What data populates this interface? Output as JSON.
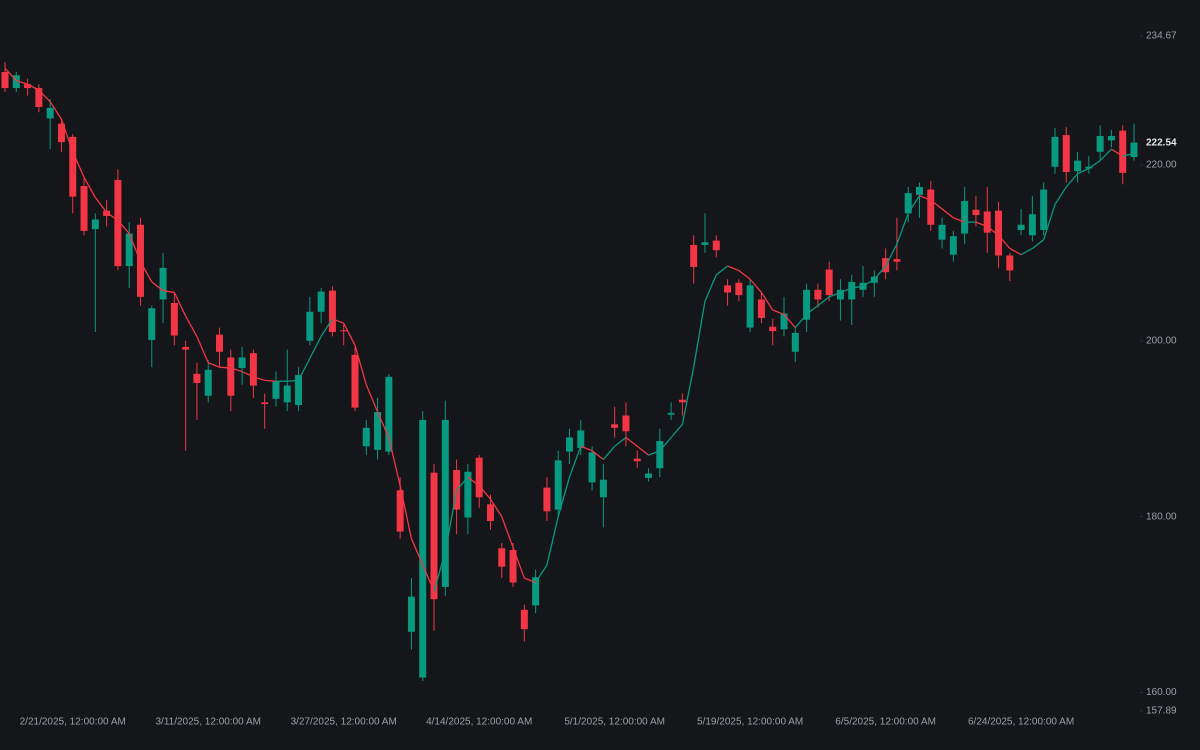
{
  "chart_data": {
    "type": "candlestick",
    "categories": [
      null,
      null,
      null,
      null,
      null,
      null,
      "2/21/2025, 12:00:00 AM",
      null,
      null,
      null,
      null,
      null,
      null,
      null,
      null,
      null,
      null,
      null,
      "3/11/2025, 12:00:00 AM",
      null,
      null,
      null,
      null,
      null,
      null,
      null,
      null,
      null,
      null,
      null,
      "3/27/2025, 12:00:00 AM",
      null,
      null,
      null,
      null,
      null,
      null,
      null,
      null,
      null,
      null,
      null,
      "4/14/2025, 12:00:00 AM",
      null,
      null,
      null,
      null,
      null,
      null,
      null,
      null,
      null,
      null,
      null,
      "5/1/2025, 12:00:00 AM",
      null,
      null,
      null,
      null,
      null,
      null,
      null,
      null,
      null,
      null,
      null,
      "5/19/2025, 12:00:00 AM",
      null,
      null,
      null,
      null,
      null,
      null,
      null,
      null,
      null,
      null,
      null,
      "6/5/2025, 12:00:00 AM",
      null,
      null,
      null,
      null,
      null,
      null,
      null,
      null,
      null,
      null,
      null,
      "6/24/2025, 12:00:00 AM",
      null,
      null,
      null,
      null,
      null,
      null,
      null,
      null,
      null,
      null
    ],
    "open": [
      230.57,
      228.75,
      229.2,
      228.75,
      225.3,
      224.7,
      223.2,
      217.6,
      212.7,
      214.8,
      218.3,
      208.5,
      213.2,
      200.1,
      204.7,
      204.3,
      199.3,
      196.25,
      193.75,
      200.7,
      198.1,
      196.9,
      198.6,
      193,
      193.4,
      193,
      192.7,
      200,
      203.3,
      205.7,
      201.2,
      198.4,
      188,
      187.6,
      187.4,
      183,
      166.9,
      161.7,
      185,
      172,
      185.3,
      179.9,
      186.7,
      181.4,
      176.4,
      176.2,
      169.4,
      169.9,
      183.3,
      180.8,
      187.4,
      187.8,
      183.9,
      182.2,
      190.5,
      191.5,
      186.6,
      184.4,
      185.5,
      191.6,
      193.3,
      210.9,
      210.9,
      211.4,
      206.3,
      206.6,
      201.5,
      204.7,
      201.6,
      201.3,
      198.75,
      202.4,
      205.8,
      208.1,
      204.7,
      204.7,
      205.8,
      206.6,
      209.4,
      209.3,
      214.5,
      216.6,
      217.2,
      211.5,
      209.8,
      212.2,
      214.9,
      214.7,
      214.8,
      209.7,
      212.6,
      212,
      212.6,
      219.8,
      223.4,
      219.3,
      219.6,
      221.5,
      222.8,
      223.9,
      220.9
    ],
    "high": [
      231.7,
      230.6,
      229.8,
      229.2,
      227.5,
      225.3,
      223.5,
      218.5,
      214.5,
      216,
      219.5,
      213.5,
      214,
      204,
      210,
      205.5,
      200,
      197.5,
      197.8,
      201.5,
      199,
      199.3,
      199,
      194,
      196.5,
      199,
      197,
      205,
      206,
      206.2,
      202,
      199.3,
      191,
      193.5,
      196.2,
      184.5,
      173,
      192,
      186,
      193.2,
      186.5,
      186,
      187,
      182.5,
      177,
      177,
      170,
      174,
      184.5,
      187.5,
      190,
      191,
      188,
      186,
      192.5,
      193,
      187.5,
      185.5,
      190,
      193,
      194,
      212,
      214.5,
      212,
      207,
      207,
      207,
      205.5,
      202.5,
      205,
      201.5,
      206.5,
      206.5,
      209,
      207,
      207.5,
      208.5,
      208,
      210.5,
      214,
      217.5,
      218,
      218.2,
      214,
      212.5,
      217.5,
      216.5,
      217.5,
      215.8,
      210,
      215,
      216.5,
      218,
      224.2,
      224.3,
      221.5,
      221,
      224.5,
      224,
      224.5,
      224.7
    ],
    "low": [
      228.3,
      228.3,
      227.9,
      226,
      221.8,
      221.5,
      214.5,
      212,
      201,
      213,
      208,
      206,
      204,
      197,
      202,
      199.5,
      187.5,
      191,
      193,
      197,
      192,
      195,
      193.5,
      190,
      192.5,
      192,
      192,
      199.5,
      202,
      200.5,
      199.5,
      192,
      187,
      186.5,
      187,
      177.5,
      164.9,
      161.3,
      167,
      171,
      178,
      178,
      181,
      178.5,
      173,
      172,
      165.8,
      169,
      179.5,
      180,
      186,
      187,
      183,
      178.8,
      189,
      188,
      185.5,
      184,
      184.5,
      191,
      191.5,
      206.5,
      210,
      209.5,
      204,
      204.5,
      201,
      202,
      199.5,
      200.5,
      197.6,
      201,
      203.8,
      204.5,
      202.3,
      201.8,
      205,
      205,
      207,
      208,
      213.5,
      214,
      212.5,
      210.5,
      209,
      211,
      213,
      210,
      208.3,
      206.8,
      212,
      211.3,
      212,
      219,
      218,
      218,
      219,
      220.5,
      222,
      217.8,
      220.5
    ],
    "close": [
      228.75,
      230.2,
      228.75,
      226.6,
      226.5,
      222.6,
      216.4,
      212.5,
      213.8,
      214.2,
      208.5,
      212.2,
      205,
      203.7,
      208.3,
      200.6,
      199,
      195.2,
      196.7,
      198.75,
      193.75,
      198.1,
      194.9,
      192.8,
      195.4,
      194.9,
      196.1,
      203.3,
      205.6,
      201,
      201.1,
      192.4,
      190.1,
      191.9,
      195.9,
      178.3,
      170.9,
      191,
      170.6,
      191,
      180.8,
      185.1,
      182.2,
      179.5,
      174.3,
      172.5,
      167.2,
      173.1,
      180.6,
      186.4,
      189,
      189.8,
      187.3,
      184.2,
      190.1,
      189.7,
      186.3,
      184.9,
      188.6,
      191.8,
      193,
      208.4,
      211.2,
      210.3,
      205.5,
      205.2,
      206.3,
      202.6,
      201.1,
      203.1,
      200.9,
      205.8,
      204.7,
      205.2,
      205.8,
      206.7,
      206.6,
      207.3,
      207.8,
      209,
      216.8,
      217.5,
      213.2,
      213.2,
      211.9,
      215.9,
      214.3,
      212.3,
      209.7,
      208,
      213.2,
      214.4,
      217.2,
      223.2,
      219.2,
      220.5,
      219.8,
      223.3,
      223.3,
      219.1,
      222.54
    ],
    "close_label": "222.54",
    "ma": [
      231.0,
      229.6,
      229.2,
      228.5,
      227.2,
      225.2,
      221.5,
      218.6,
      216.3,
      214.6,
      213.7,
      212.2,
      209.0,
      206.7,
      205.7,
      205.5,
      202.8,
      200.5,
      197.5,
      197.0,
      196.9,
      196.5,
      195.9,
      195.5,
      195.4,
      195.4,
      195.5,
      198.0,
      200.5,
      202.5,
      202.0,
      199.5,
      195.0,
      191.9,
      189.0,
      183.5,
      177.5,
      174.5,
      171.5,
      176.0,
      183.0,
      184.5,
      183.5,
      182.0,
      180.0,
      176.5,
      173.0,
      172.5,
      174.5,
      180.0,
      184.5,
      188.0,
      187.5,
      186.5,
      188.0,
      189.0,
      188.0,
      187.0,
      187.5,
      189.0,
      190.5,
      197.0,
      204.5,
      207.5,
      208.5,
      208.0,
      207.0,
      205.5,
      203.5,
      203.0,
      201.5,
      203.0,
      204.0,
      205.0,
      205.5,
      206.0,
      206.2,
      207.0,
      208.5,
      211.0,
      214.5,
      216.5,
      216.0,
      215.0,
      214.0,
      213.5,
      213.5,
      213.0,
      212.0,
      210.5,
      209.8,
      210.5,
      211.5,
      215.5,
      217.5,
      219.0,
      219.6,
      220.5,
      221.8,
      221.0,
      221.3
    ],
    "up_color": "#089981",
    "down_color": "#f23645",
    "ylim": [
      157.89,
      234.67
    ],
    "yticks": [
      {
        "value": 157.89,
        "label": "157.89"
      },
      {
        "value": 160,
        "label": "160.00"
      },
      {
        "value": 180,
        "label": "180.00"
      },
      {
        "value": 200,
        "label": "200.00"
      },
      {
        "value": 220,
        "label": "220.00"
      },
      {
        "value": 234.67,
        "label": "234.67"
      }
    ]
  }
}
